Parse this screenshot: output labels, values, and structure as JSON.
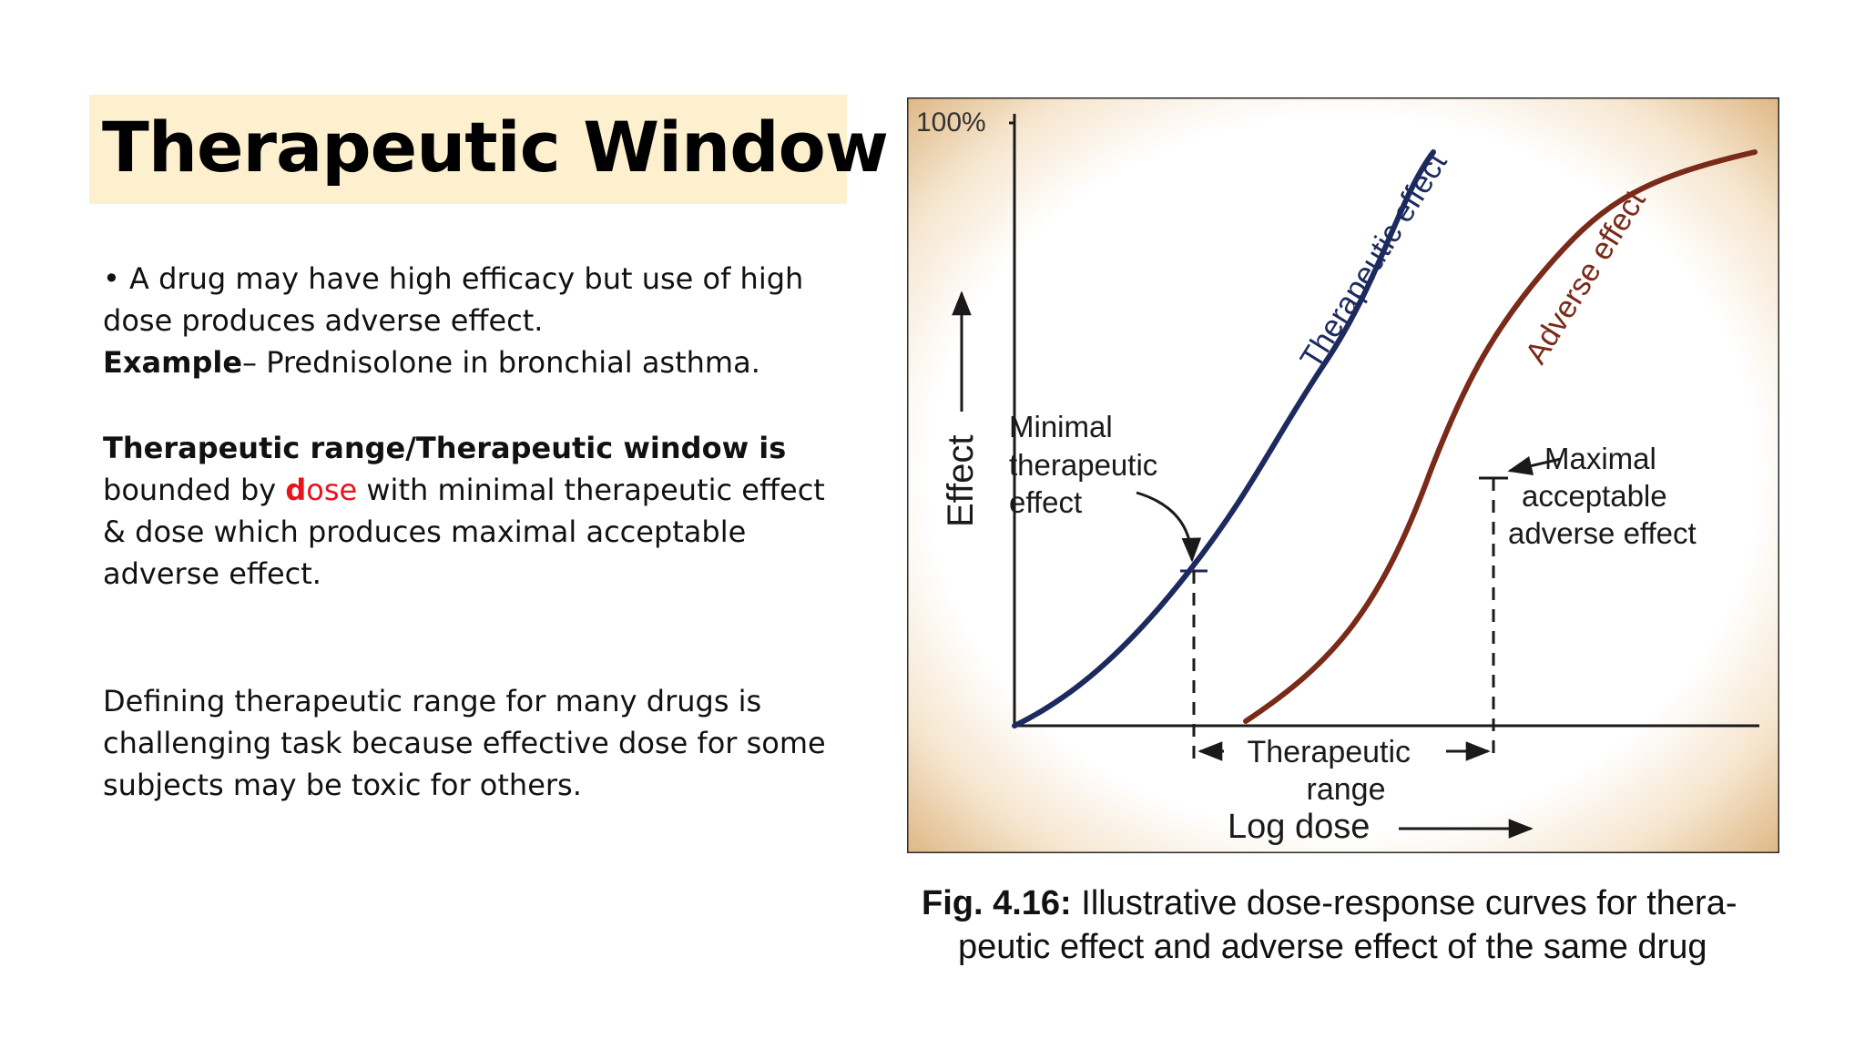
{
  "slide": {
    "title": "Therapeutic Window",
    "paragraph1": {
      "line1": "• A drug may have high efficacy but use of high",
      "line2": "dose produces adverse effect.",
      "example_label": "Example",
      "example_text": "– Prednisolone in bronchial asthma."
    },
    "paragraph2": {
      "line1": "Therapeutic range/Therapeutic window is",
      "line2_before": "bounded by ",
      "line2_red_bold": "d",
      "line2_red": "ose",
      "line2_after": " with minimal therapeutic effect",
      "line3": "& dose which produces maximal acceptable",
      "line4": "adverse effect."
    },
    "paragraph3": {
      "line1": "Defining therapeutic range for many drugs is",
      "line2": "challenging task because effective dose for some",
      "line3": "subjects may be toxic for others."
    }
  },
  "figure": {
    "y_top_label": "100%",
    "y_axis_label": "Effect",
    "x_axis_label": "Log dose",
    "therapeutic_curve_label": "Therapeutic effect",
    "adverse_curve_label": "Adverse effect",
    "minimal_label": [
      "Minimal",
      "therapeutic",
      "effect"
    ],
    "maximal_label": [
      "Maximal",
      "acceptable",
      "adverse effect"
    ],
    "range_label": [
      "Therapeutic",
      "range"
    ],
    "colors": {
      "therapeutic": "#1c2a5e",
      "adverse": "#7a2a18",
      "frame": "#e6c394",
      "axis": "#1a1a1a"
    },
    "caption_bold": "Fig. 4.16:",
    "caption_line1": " Illustrative dose-response curves for thera-",
    "caption_line2": "peutic effect and adverse effect of the same drug"
  }
}
